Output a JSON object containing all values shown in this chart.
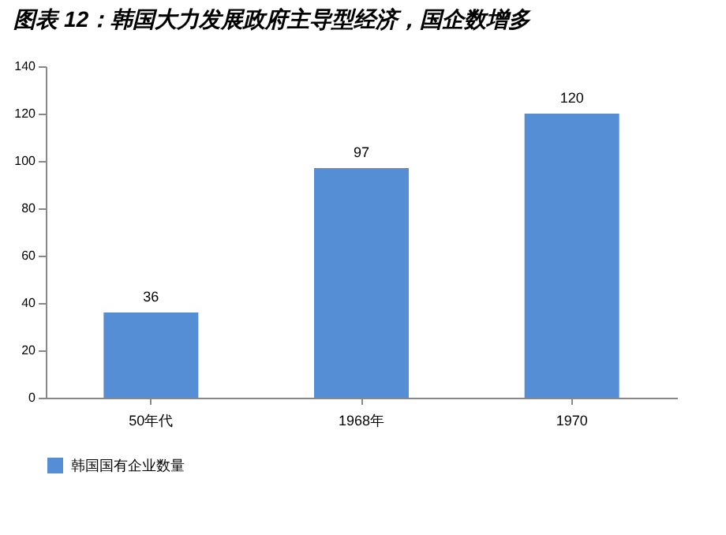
{
  "chart_data": {
    "type": "bar",
    "title": "图表 12：韩国大力发展政府主导型经济，国企数增多",
    "categories": [
      "50年代",
      "1968年",
      "1970"
    ],
    "series": [
      {
        "name": "韩国国有企业数量",
        "color": "#558ed5",
        "values": [
          36,
          97,
          120
        ]
      }
    ],
    "ylim": [
      0,
      140
    ],
    "yticks": [
      0,
      20,
      40,
      60,
      80,
      100,
      120,
      140
    ],
    "grid": false,
    "legend": "bottom",
    "data_labels": true
  }
}
